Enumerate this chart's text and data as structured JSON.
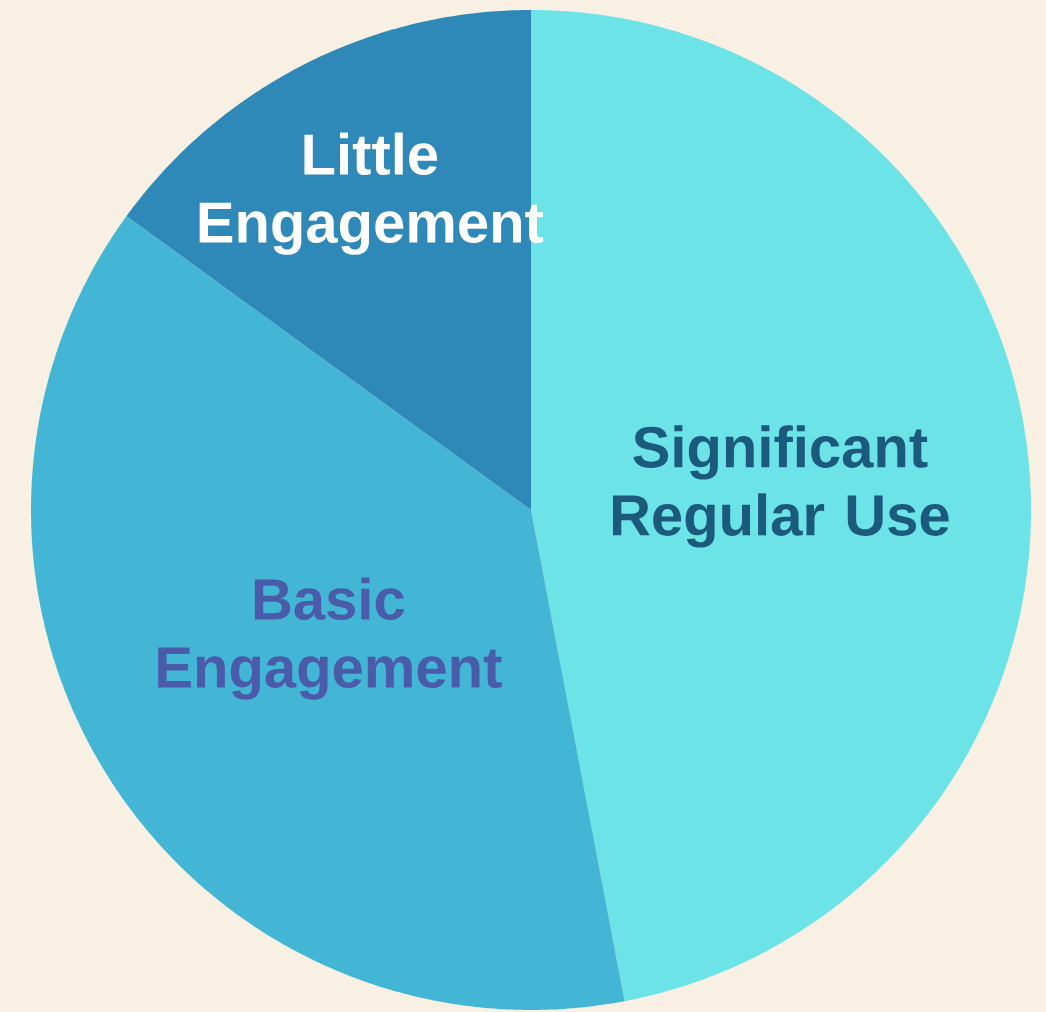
{
  "chart_data": {
    "type": "pie",
    "categories": [
      "Significant Regular Use",
      "Basic Engagement",
      "Little Engagement"
    ],
    "values": [
      47,
      38,
      15
    ],
    "colors": [
      "#6ce3e6",
      "#42b6d4",
      "#2e88b8"
    ]
  }
}
